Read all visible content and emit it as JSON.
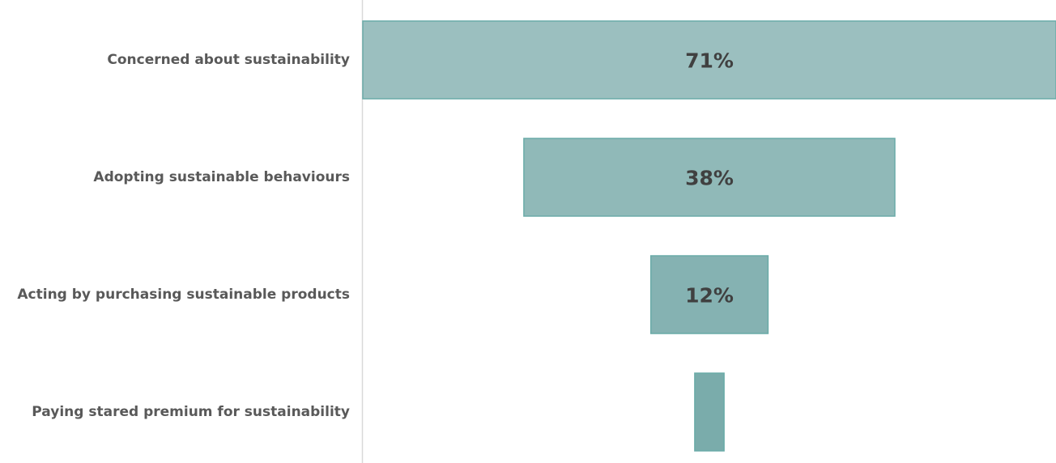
{
  "chart_data": {
    "type": "bar",
    "orientation": "horizontal",
    "style": "funnel",
    "categories": [
      "Concerned about sustainability",
      "Adopting sustainable behaviours",
      "Acting by purchasing sustainable products",
      "Paying stared premium for sustainability"
    ],
    "values": [
      71,
      38,
      12,
      3
    ],
    "data_labels": [
      "71%",
      "38%",
      "12%",
      ""
    ],
    "unit": "%",
    "title": "",
    "xlabel": "",
    "ylabel": "",
    "xlim": [
      0,
      71
    ],
    "grid": false,
    "legend": "none",
    "colors": {
      "bar_top": "#9bbfbf",
      "bar_bottom": "#7aacab",
      "bar_border": "#6aaba8",
      "axis": "#d9d9d9"
    }
  }
}
